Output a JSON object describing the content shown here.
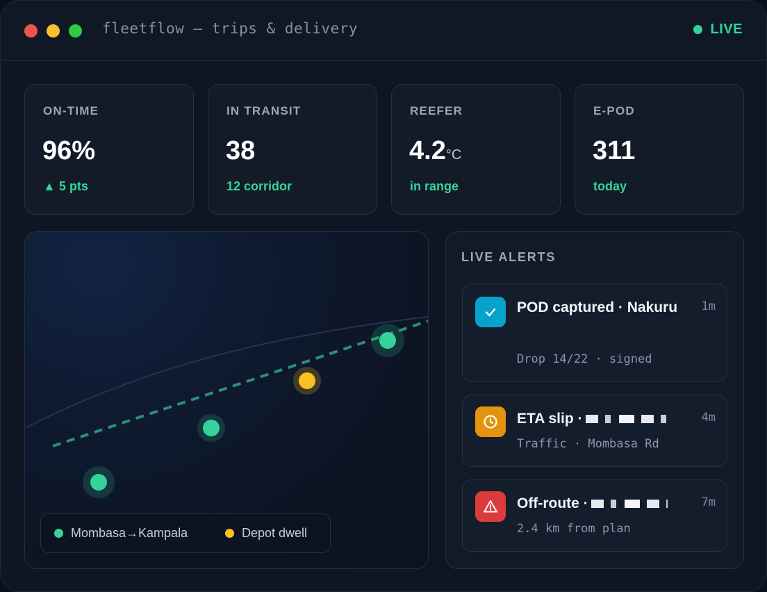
{
  "window": {
    "title": "fleetflow — trips & delivery",
    "status": "LIVE"
  },
  "kpis": [
    {
      "label": "ON-TIME",
      "value": "96%",
      "unit": "",
      "sub": "▲ 5 pts"
    },
    {
      "label": "IN TRANSIT",
      "value": "38",
      "unit": "",
      "sub": "12 corridor"
    },
    {
      "label": "REEFER",
      "value": "4.2",
      "unit": "°C",
      "sub": "in range"
    },
    {
      "label": "E-POD",
      "value": "311",
      "unit": "",
      "sub": "today"
    }
  ],
  "map": {
    "legend": [
      {
        "label": "Mombasa→Kampala",
        "color": "#34d399"
      },
      {
        "label": "Depot dwell",
        "color": "#fbbf24"
      }
    ],
    "colors": {
      "route": "#34d399",
      "stop": "#fbbf24"
    }
  },
  "alerts": {
    "title": "LIVE ALERTS",
    "items": [
      {
        "title": "POD captured · Nakuru",
        "sub": "Drop 14/22 · signed",
        "time": "1m",
        "icon": "check-icon",
        "color": "#06a3c8"
      },
      {
        "title": "ETA slip ·",
        "sub": "Traffic · Mombasa Rd",
        "time": "4m",
        "icon": "clock-icon",
        "color": "#e3930e"
      },
      {
        "title": "Off-route ·",
        "sub": "2.4 km from plan",
        "time": "7m",
        "icon": "warning-icon",
        "color": "#dc3b3b"
      }
    ]
  }
}
